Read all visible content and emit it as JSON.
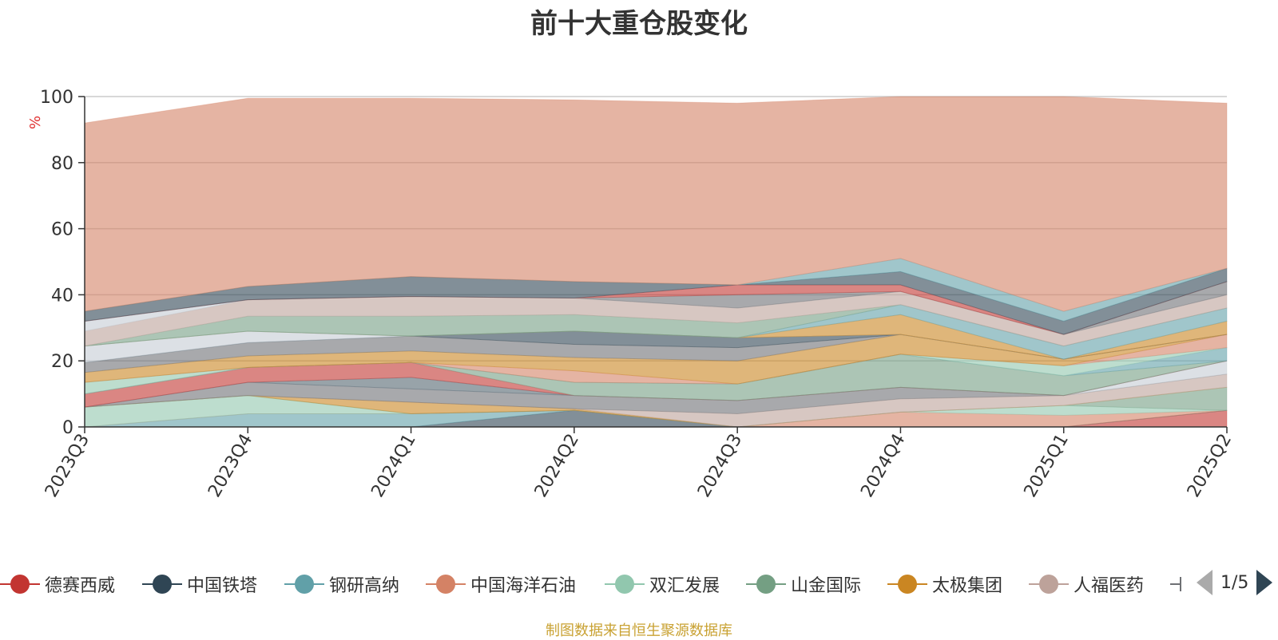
{
  "title": "前十大重仓股变化",
  "source": "制图数据来自恒生聚源数据库",
  "pager": {
    "text": "1/5"
  },
  "colors": {
    "prev_arrow": "#aaaaaa",
    "next_arrow": "#2f4554"
  },
  "chart_data": {
    "type": "area",
    "stacked": true,
    "ylabel": "%",
    "ylim": [
      0,
      100
    ],
    "yticks": [
      "0",
      "20",
      "40",
      "60",
      "80",
      "100"
    ],
    "categories": [
      "2023Q3",
      "2023Q4",
      "2024Q1",
      "2024Q2",
      "2024Q3",
      "2024Q4",
      "2025Q1",
      "2025Q2"
    ],
    "grid": true,
    "legend_position": "bottom",
    "series": [
      {
        "name": "德赛西威",
        "color": "#c23531",
        "legend_visible": true,
        "values": [
          0,
          0,
          0,
          0,
          0,
          0,
          0,
          5
        ]
      },
      {
        "name": "中国铁塔",
        "color": "#2f4554",
        "legend_visible": true,
        "values": [
          0,
          0,
          0,
          5,
          0,
          0,
          0,
          0
        ]
      },
      {
        "name": "钢研高纳",
        "color": "#61a0a8",
        "legend_visible": true,
        "values": [
          0,
          4,
          4,
          0,
          0,
          0,
          0,
          0
        ]
      },
      {
        "name": "中国海洋石油",
        "color": "#d48265",
        "legend_visible": true,
        "values": [
          0,
          0,
          0,
          0,
          0,
          4.5,
          3.5,
          0
        ]
      },
      {
        "name": "双汇发展",
        "color": "#91c7ae",
        "legend_visible": true,
        "values": [
          6,
          5.5,
          0,
          0,
          0,
          0,
          3,
          0
        ]
      },
      {
        "name": "山金国际",
        "color": "#749f83",
        "legend_visible": true,
        "values": [
          0,
          0,
          0,
          0,
          0,
          0,
          0,
          7
        ]
      },
      {
        "name": "太极集团",
        "color": "#ca8622",
        "legend_visible": true,
        "values": [
          0,
          0,
          3.5,
          0.5,
          0,
          0,
          0,
          0
        ]
      },
      {
        "name": "人福医药",
        "color": "#bda29a",
        "legend_visible": true,
        "values": [
          0,
          0,
          0,
          0,
          4,
          4,
          3,
          4
        ]
      },
      {
        "name": "",
        "color": "#6e7074",
        "legend_visible": false,
        "values": [
          0,
          4,
          4,
          4,
          4,
          3.5,
          0,
          0
        ]
      },
      {
        "name": "",
        "color": "#c4ccd3",
        "legend_visible": false,
        "values": [
          0,
          0,
          0,
          0,
          0,
          0,
          0,
          4
        ]
      },
      {
        "name": "",
        "color": "#546570",
        "legend_visible": false,
        "values": [
          0,
          0,
          3.5,
          0,
          0,
          0,
          0,
          0
        ]
      },
      {
        "name": "",
        "color": "#c23531",
        "legend_visible": false,
        "values": [
          4,
          4.5,
          4.5,
          0,
          0,
          0,
          0,
          0
        ]
      },
      {
        "name": "",
        "color": "#749f83",
        "legend_visible": false,
        "values": [
          0,
          0,
          0,
          4,
          5,
          10,
          6,
          0
        ]
      },
      {
        "name": "",
        "color": "#61a0a8",
        "legend_visible": false,
        "values": [
          0,
          0,
          0,
          0,
          0,
          0,
          0,
          4
        ]
      },
      {
        "name": "",
        "color": "#91c7ae",
        "legend_visible": false,
        "values": [
          3.5,
          0,
          0,
          0,
          0,
          0,
          3,
          0
        ]
      },
      {
        "name": "",
        "color": "#d48265",
        "legend_visible": false,
        "values": [
          0,
          0,
          0,
          3.5,
          0,
          0,
          0,
          4
        ]
      },
      {
        "name": "",
        "color": "#ca8622",
        "legend_visible": false,
        "values": [
          3,
          3.5,
          3.5,
          4,
          7,
          6,
          2,
          0
        ]
      },
      {
        "name": "",
        "color": "#6e7074",
        "legend_visible": false,
        "values": [
          3,
          4,
          4.5,
          4,
          4,
          0,
          0,
          0
        ]
      },
      {
        "name": "",
        "color": "#2f4554",
        "legend_visible": false,
        "values": [
          0,
          0,
          0,
          4,
          3,
          0,
          0,
          0
        ]
      },
      {
        "name": "",
        "color": "#c4ccd3",
        "legend_visible": false,
        "values": [
          5,
          3.5,
          0,
          0,
          0,
          0,
          0,
          0
        ]
      },
      {
        "name": "",
        "color": "#ca8622",
        "legend_visible": false,
        "values": [
          0,
          0,
          0,
          0,
          0,
          6,
          0,
          4
        ]
      },
      {
        "name": "",
        "color": "#61a0a8",
        "legend_visible": false,
        "values": [
          0,
          0,
          0,
          0,
          0,
          3,
          4,
          4
        ]
      },
      {
        "name": "",
        "color": "#749f83",
        "legend_visible": false,
        "values": [
          0,
          4.5,
          6,
          5,
          4.5,
          0,
          0,
          0
        ]
      },
      {
        "name": "",
        "color": "#bda29a",
        "legend_visible": false,
        "values": [
          4.5,
          5,
          6,
          5,
          4.5,
          4,
          3.5,
          4
        ]
      },
      {
        "name": "",
        "color": "#c4ccd3",
        "legend_visible": false,
        "values": [
          3,
          0,
          0,
          0,
          0,
          0,
          0,
          0
        ]
      },
      {
        "name": "",
        "color": "#6e7074",
        "legend_visible": false,
        "values": [
          0,
          0,
          0,
          0,
          4,
          0,
          0,
          4
        ]
      },
      {
        "name": "",
        "color": "#c23531",
        "legend_visible": false,
        "values": [
          0,
          0,
          0,
          0,
          3,
          2,
          0,
          0
        ]
      },
      {
        "name": "",
        "color": "#2f4554",
        "legend_visible": false,
        "values": [
          3,
          4,
          6,
          5,
          0,
          4,
          4,
          4
        ]
      },
      {
        "name": "",
        "color": "#61a0a8",
        "legend_visible": false,
        "values": [
          0,
          0,
          0,
          0,
          0,
          4,
          3,
          0
        ]
      },
      {
        "name": "",
        "color": "#d48265",
        "legend_visible": false,
        "values": [
          57,
          57,
          54,
          55,
          55,
          49,
          65,
          50
        ]
      }
    ]
  }
}
